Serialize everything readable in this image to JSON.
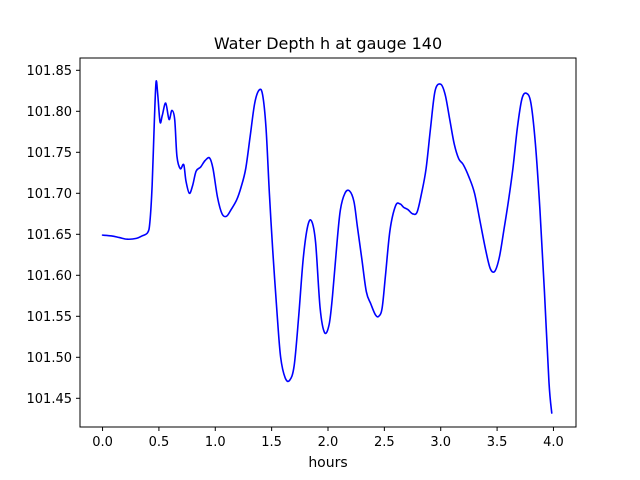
{
  "chart_data": {
    "type": "line",
    "title": "Water Depth h at gauge 140",
    "xlabel": "hours",
    "ylabel": "",
    "xlim": [
      -0.2,
      4.2
    ],
    "ylim": [
      101.415,
      101.865
    ],
    "x_ticks": [
      0.0,
      0.5,
      1.0,
      1.5,
      2.0,
      2.5,
      3.0,
      3.5,
      4.0
    ],
    "x_tick_labels": [
      "0.0",
      "0.5",
      "1.0",
      "1.5",
      "2.0",
      "2.5",
      "3.0",
      "3.5",
      "4.0"
    ],
    "y_ticks": [
      101.45,
      101.5,
      101.55,
      101.6,
      101.65,
      101.7,
      101.75,
      101.8,
      101.85
    ],
    "y_tick_labels": [
      "101.45",
      "101.50",
      "101.55",
      "101.60",
      "101.65",
      "101.70",
      "101.75",
      "101.80",
      "101.85"
    ],
    "grid": false,
    "legend": "none",
    "series": [
      {
        "color": "#0000ff",
        "x": [
          0.0,
          0.08,
          0.15,
          0.22,
          0.3,
          0.35,
          0.4,
          0.42,
          0.44,
          0.46,
          0.475,
          0.49,
          0.51,
          0.53,
          0.56,
          0.59,
          0.615,
          0.64,
          0.66,
          0.69,
          0.72,
          0.74,
          0.77,
          0.8,
          0.83,
          0.87,
          0.91,
          0.95,
          0.98,
          1.02,
          1.06,
          1.1,
          1.14,
          1.19,
          1.23,
          1.27,
          1.31,
          1.35,
          1.39,
          1.42,
          1.45,
          1.48,
          1.51,
          1.55,
          1.58,
          1.62,
          1.66,
          1.7,
          1.74,
          1.78,
          1.82,
          1.855,
          1.89,
          1.93,
          1.97,
          2.01,
          2.04,
          2.08,
          2.11,
          2.15,
          2.19,
          2.23,
          2.26,
          2.3,
          2.34,
          2.38,
          2.42,
          2.45,
          2.48,
          2.51,
          2.55,
          2.6,
          2.64,
          2.67,
          2.71,
          2.75,
          2.79,
          2.83,
          2.87,
          2.91,
          2.95,
          3.0,
          3.04,
          3.08,
          3.12,
          3.16,
          3.2,
          3.25,
          3.3,
          3.35,
          3.4,
          3.44,
          3.48,
          3.52,
          3.56,
          3.6,
          3.64,
          3.68,
          3.72,
          3.76,
          3.8,
          3.84,
          3.88,
          3.92,
          3.96,
          3.985
        ],
        "y": [
          101.649,
          101.648,
          101.646,
          101.644,
          101.645,
          101.648,
          101.652,
          101.665,
          101.71,
          101.79,
          101.836,
          101.82,
          101.787,
          101.795,
          101.81,
          101.79,
          101.801,
          101.79,
          101.745,
          101.73,
          101.735,
          101.715,
          101.7,
          101.71,
          101.727,
          101.732,
          101.74,
          101.743,
          101.73,
          101.695,
          101.675,
          101.672,
          101.68,
          101.692,
          101.708,
          101.73,
          101.77,
          101.81,
          101.826,
          101.82,
          101.78,
          101.7,
          101.63,
          101.55,
          101.5,
          101.475,
          101.472,
          101.49,
          101.55,
          101.62,
          101.66,
          101.666,
          101.64,
          101.56,
          101.53,
          101.54,
          101.575,
          101.64,
          101.68,
          101.7,
          101.703,
          101.69,
          101.66,
          101.62,
          101.58,
          101.565,
          101.552,
          101.55,
          101.56,
          101.6,
          101.655,
          101.685,
          101.687,
          101.683,
          101.68,
          101.675,
          101.677,
          101.7,
          101.73,
          101.78,
          101.825,
          101.833,
          101.82,
          101.79,
          101.76,
          101.742,
          101.735,
          101.72,
          101.7,
          101.665,
          101.63,
          101.608,
          101.605,
          101.622,
          101.655,
          101.69,
          101.73,
          101.78,
          101.815,
          101.822,
          101.81,
          101.76,
          101.68,
          101.58,
          101.47,
          101.432
        ]
      }
    ]
  }
}
